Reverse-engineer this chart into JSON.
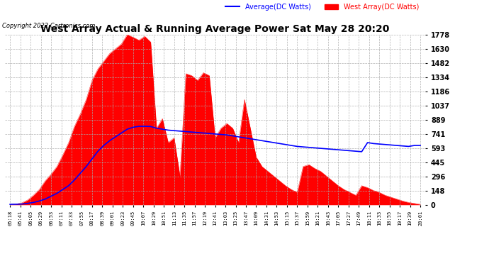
{
  "title": "West Array Actual & Running Average Power Sat May 28 20:20",
  "copyright": "Copyright 2022 Cartronics.com",
  "legend_avg": "Average(DC Watts)",
  "legend_west": "West Array(DC Watts)",
  "bg_color": "#ffffff",
  "grid_color": "#aaaaaa",
  "bar_color": "#ff0000",
  "avg_line_color": "#0000ff",
  "title_color": "#000000",
  "copyright_color": "#000000",
  "legend_avg_color": "#0000ff",
  "legend_west_color": "#ff0000",
  "tick_label_color": "#000000",
  "ymin": 0.0,
  "ymax": 1778.2,
  "yticks": [
    0.0,
    148.2,
    296.4,
    444.6,
    592.7,
    740.9,
    889.1,
    1037.3,
    1185.5,
    1333.7,
    1481.8,
    1630.0,
    1778.2
  ],
  "x_labels": [
    "05:18",
    "05:41",
    "06:05",
    "06:29",
    "06:53",
    "07:11",
    "07:33",
    "07:55",
    "08:17",
    "08:39",
    "09:01",
    "09:23",
    "09:45",
    "10:07",
    "10:29",
    "10:51",
    "11:13",
    "11:35",
    "11:57",
    "12:19",
    "12:41",
    "13:03",
    "13:25",
    "13:47",
    "14:09",
    "14:31",
    "14:53",
    "15:15",
    "15:37",
    "15:59",
    "16:21",
    "16:43",
    "17:05",
    "17:27",
    "17:49",
    "18:11",
    "18:33",
    "18:55",
    "19:17",
    "19:39",
    "20:01"
  ],
  "west_values": [
    5,
    8,
    20,
    50,
    100,
    160,
    250,
    320,
    400,
    520,
    650,
    820,
    950,
    1100,
    1300,
    1420,
    1500,
    1580,
    1630,
    1680,
    1778,
    1750,
    1720,
    1760,
    1700,
    800,
    900,
    650,
    700,
    300,
    1370,
    1350,
    1300,
    1380,
    1350,
    700,
    800,
    850,
    800,
    650,
    1100,
    800,
    500,
    400,
    350,
    300,
    250,
    200,
    160,
    130,
    400,
    420,
    380,
    350,
    300,
    250,
    200,
    160,
    130,
    100,
    200,
    180,
    150,
    130,
    100,
    80,
    60,
    40,
    25,
    15,
    5
  ],
  "avg_values": [
    5,
    6,
    8,
    15,
    25,
    40,
    60,
    90,
    120,
    160,
    200,
    260,
    330,
    400,
    480,
    560,
    620,
    670,
    710,
    750,
    790,
    810,
    820,
    820,
    818,
    800,
    790,
    780,
    775,
    770,
    765,
    760,
    755,
    750,
    745,
    740,
    735,
    730,
    720,
    710,
    700,
    690,
    680,
    670,
    660,
    650,
    640,
    630,
    620,
    610,
    605,
    600,
    595,
    590,
    585,
    580,
    575,
    570,
    565,
    560,
    555,
    650,
    640,
    635,
    630,
    625,
    620,
    615,
    610,
    620,
    620
  ],
  "n_points": 71
}
